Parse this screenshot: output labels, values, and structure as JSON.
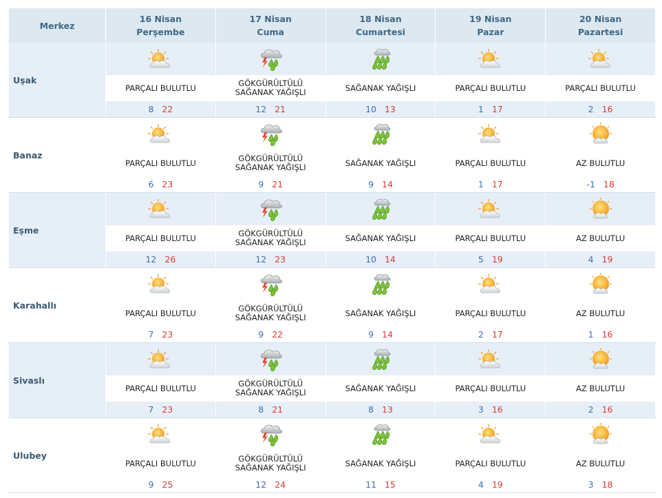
{
  "header": {
    "corner": "Merkez",
    "days": [
      {
        "date": "16 Nisan",
        "weekday": "Perşembe"
      },
      {
        "date": "17 Nisan",
        "weekday": "Cuma"
      },
      {
        "date": "18 Nisan",
        "weekday": "Cumartesi"
      },
      {
        "date": "19 Nisan",
        "weekday": "Pazar"
      },
      {
        "date": "20 Nisan",
        "weekday": "Pazartesi"
      }
    ]
  },
  "rows": [
    {
      "city": "Uşak",
      "days": [
        {
          "condition": "PARÇALI BULUTLU",
          "low": 8,
          "high": 22
        },
        {
          "condition": "GÖKGÜRÜLTÜLÜ SAĞANAK YAĞIŞLI",
          "low": 12,
          "high": 21
        },
        {
          "condition": "SAĞANAK YAĞIŞLI",
          "low": 10,
          "high": 13
        },
        {
          "condition": "PARÇALI BULUTLU",
          "low": 1,
          "high": 17
        },
        {
          "condition": "PARÇALI BULUTLU",
          "low": 2,
          "high": 16
        }
      ]
    },
    {
      "city": "Banaz",
      "days": [
        {
          "condition": "PARÇALI BULUTLU",
          "low": 6,
          "high": 23
        },
        {
          "condition": "GÖKGÜRÜLTÜLÜ SAĞANAK YAĞIŞLI",
          "low": 9,
          "high": 21
        },
        {
          "condition": "SAĞANAK YAĞIŞLI",
          "low": 9,
          "high": 14
        },
        {
          "condition": "PARÇALI BULUTLU",
          "low": 1,
          "high": 17
        },
        {
          "condition": "AZ BULUTLU",
          "low": -1,
          "high": 18
        }
      ]
    },
    {
      "city": "Eşme",
      "days": [
        {
          "condition": "PARÇALI BULUTLU",
          "low": 12,
          "high": 26
        },
        {
          "condition": "GÖKGÜRÜLTÜLÜ SAĞANAK YAĞIŞLI",
          "low": 12,
          "high": 23
        },
        {
          "condition": "SAĞANAK YAĞIŞLI",
          "low": 10,
          "high": 14
        },
        {
          "condition": "PARÇALI BULUTLU",
          "low": 5,
          "high": 19
        },
        {
          "condition": "AZ BULUTLU",
          "low": 4,
          "high": 19
        }
      ]
    },
    {
      "city": "Karahallı",
      "days": [
        {
          "condition": "PARÇALI BULUTLU",
          "low": 7,
          "high": 23
        },
        {
          "condition": "GÖKGÜRÜLTÜLÜ SAĞANAK YAĞIŞLI",
          "low": 9,
          "high": 22
        },
        {
          "condition": "SAĞANAK YAĞIŞLI",
          "low": 9,
          "high": 14
        },
        {
          "condition": "PARÇALI BULUTLU",
          "low": 2,
          "high": 17
        },
        {
          "condition": "AZ BULUTLU",
          "low": 1,
          "high": 16
        }
      ]
    },
    {
      "city": "Sivaslı",
      "days": [
        {
          "condition": "PARÇALI BULUTLU",
          "low": 7,
          "high": 23
        },
        {
          "condition": "GÖKGÜRÜLTÜLÜ SAĞANAK YAĞIŞLI",
          "low": 8,
          "high": 21
        },
        {
          "condition": "SAĞANAK YAĞIŞLI",
          "low": 8,
          "high": 13
        },
        {
          "condition": "PARÇALI BULUTLU",
          "low": 3,
          "high": 16
        },
        {
          "condition": "AZ BULUTLU",
          "low": 2,
          "high": 16
        }
      ]
    },
    {
      "city": "Ulubey",
      "days": [
        {
          "condition": "PARÇALI BULUTLU",
          "low": 9,
          "high": 25
        },
        {
          "condition": "GÖKGÜRÜLTÜLÜ SAĞANAK YAĞIŞLI",
          "low": 12,
          "high": 24
        },
        {
          "condition": "SAĞANAK YAĞIŞLI",
          "low": 11,
          "high": 15
        },
        {
          "condition": "PARÇALI BULUTLU",
          "low": 4,
          "high": 19
        },
        {
          "condition": "AZ BULUTLU",
          "low": 3,
          "high": 18
        }
      ]
    }
  ]
}
